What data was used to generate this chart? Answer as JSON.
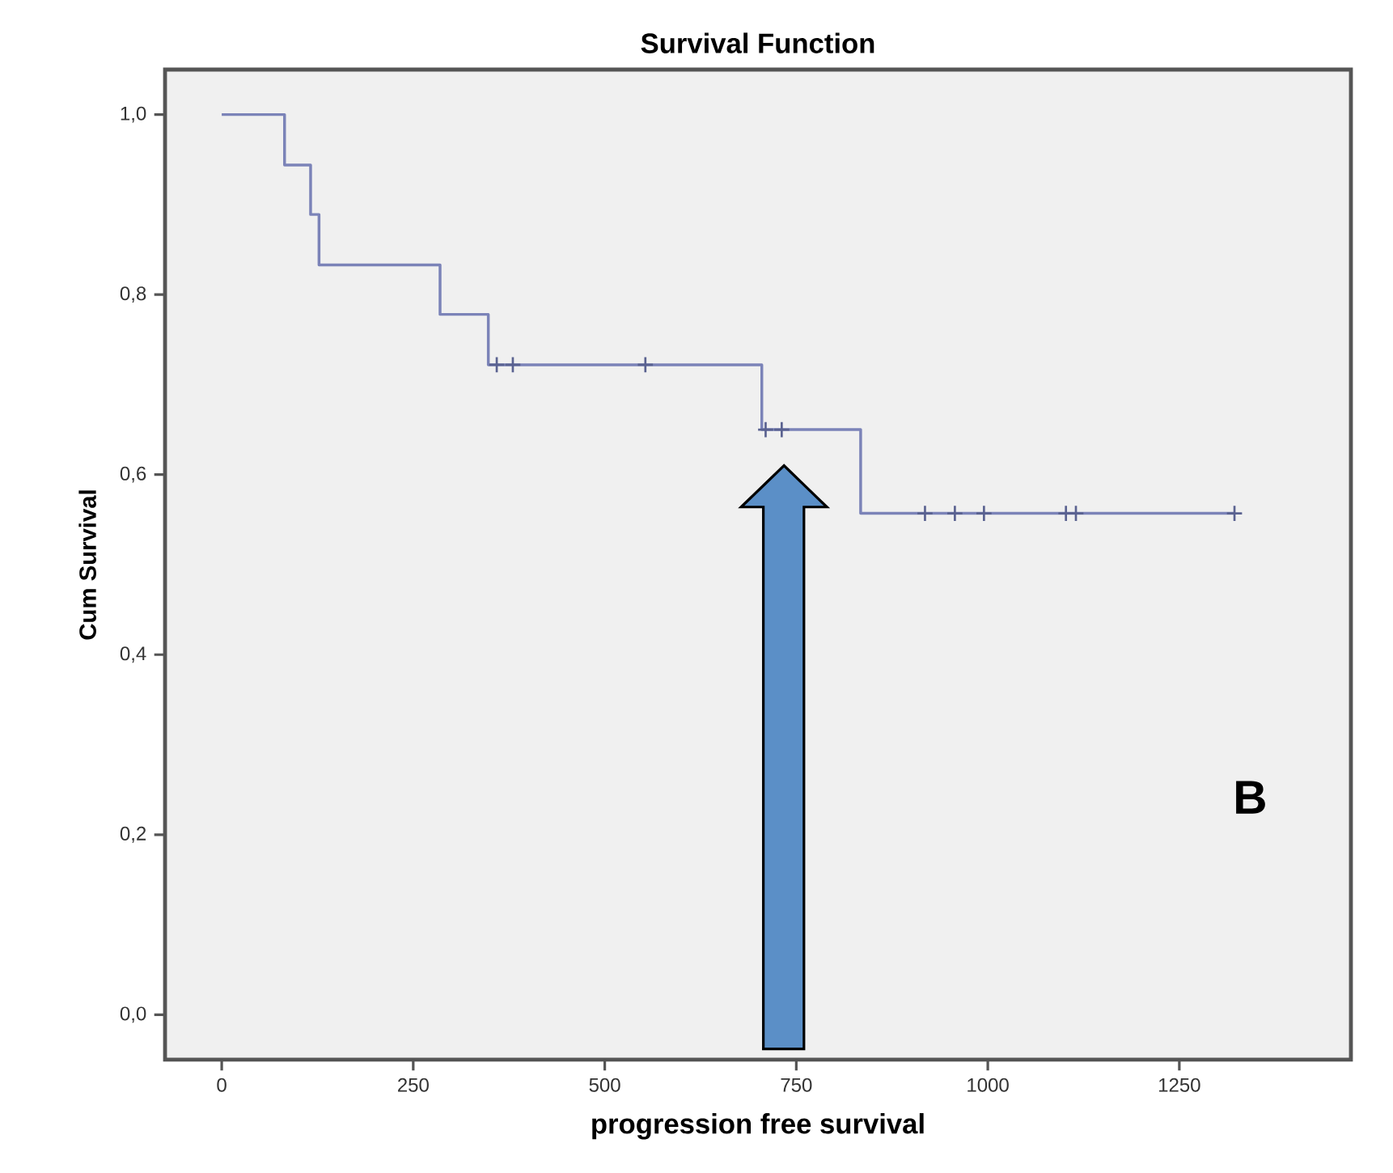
{
  "chart_data": {
    "type": "step",
    "title": "Survival Function",
    "xlabel": "progression free survival",
    "ylabel": "Cum Survival",
    "xlim": [
      -74,
      1474
    ],
    "ylim": [
      -0.05,
      1.05
    ],
    "xticks": [
      0,
      250,
      500,
      750,
      1000,
      1250
    ],
    "yticks": [
      {
        "value": 0,
        "label": "0,0"
      },
      {
        "value": 0.2,
        "label": "0,2"
      },
      {
        "value": 0.4,
        "label": "0,4"
      },
      {
        "value": 0.6,
        "label": "0,6"
      },
      {
        "value": 0.8,
        "label": "0,8"
      },
      {
        "value": 1,
        "label": "1,0"
      }
    ],
    "series": [
      {
        "color": "#7b83b8",
        "x": [
          0,
          82,
          116,
          127,
          285,
          348,
          705,
          834,
          1322
        ],
        "values": [
          1,
          0.944,
          0.889,
          0.833,
          0.778,
          0.722,
          0.65,
          0.557,
          0.557
        ]
      },
      {
        "type": "scatter",
        "marker": "cross",
        "color": "#5a6290",
        "x": [
          359,
          380,
          553,
          710,
          731,
          918,
          957,
          995,
          1102,
          1115,
          1322
        ],
        "values": [
          0.722,
          0.722,
          0.722,
          0.65,
          0.65,
          0.557,
          0.557,
          0.557,
          0.557,
          0.557,
          0.557
        ]
      }
    ],
    "annotations": [
      "B"
    ]
  }
}
